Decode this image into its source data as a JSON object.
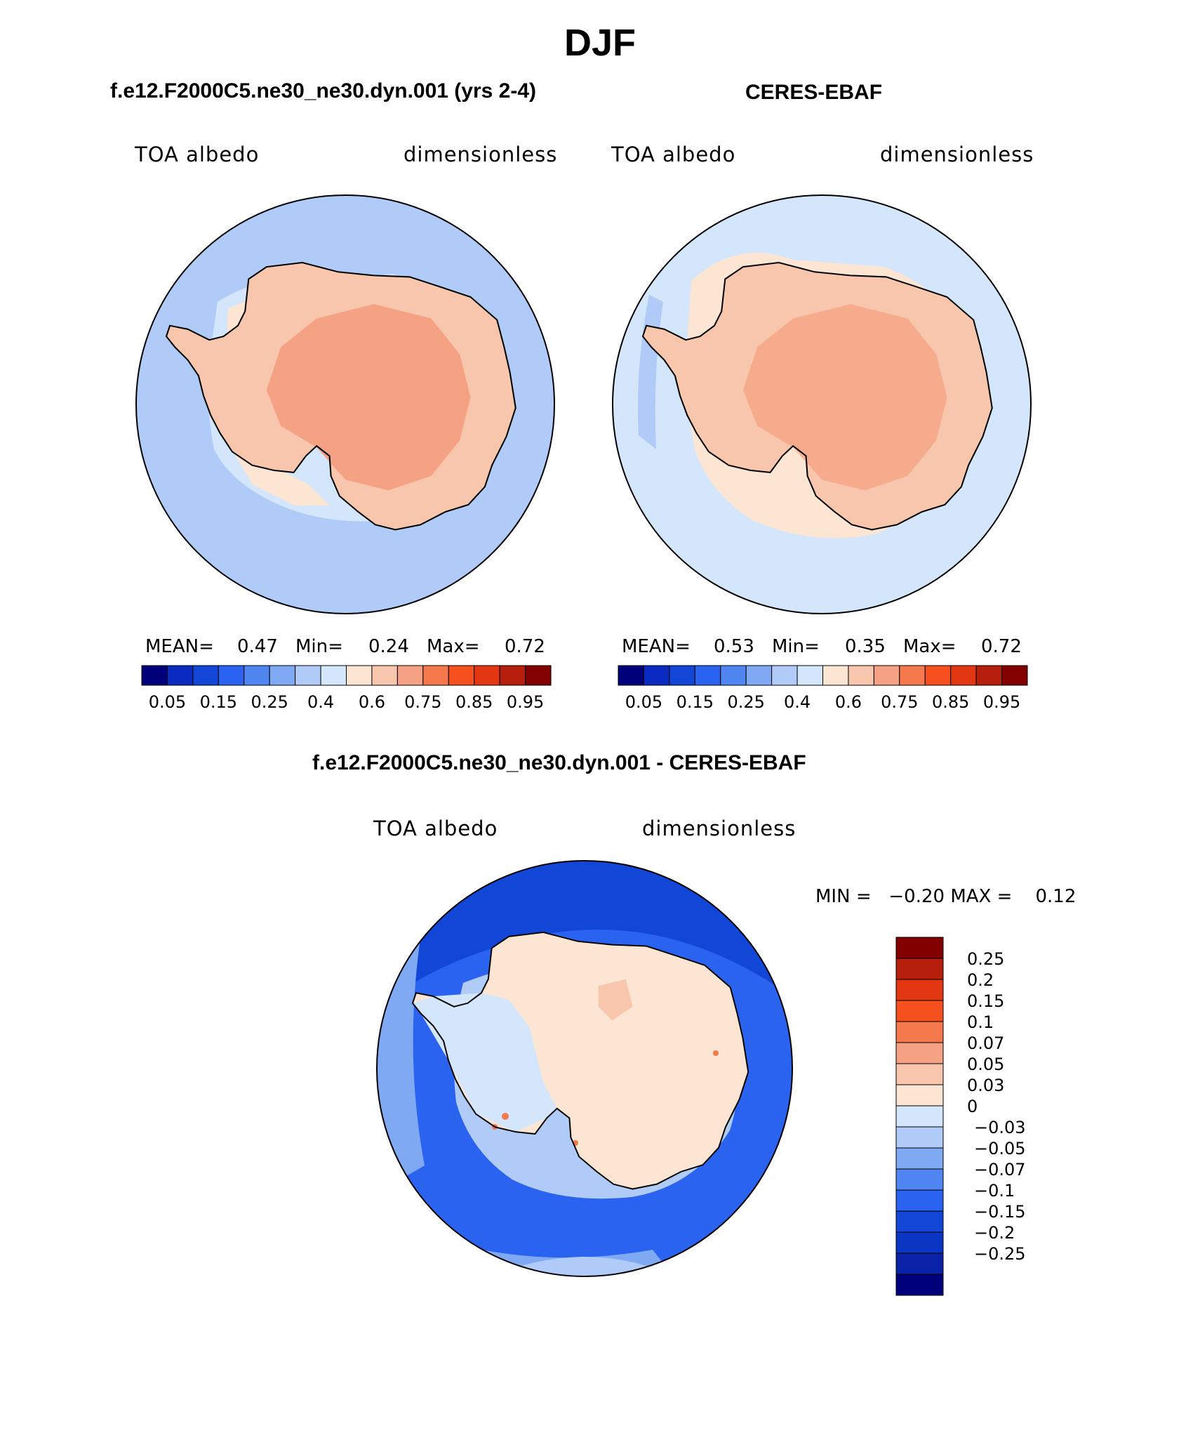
{
  "figure": {
    "season": "DJF",
    "bottom_title": "f.e12.F2000C5.ne30_ne30.dyn.001 - CERES-EBAF"
  },
  "panels": [
    {
      "title": "f.e12.F2000C5.ne30_ne30.dyn.001 (yrs 2-4)",
      "left_label": "TOA albedo",
      "right_label": "dimensionless",
      "mean_label": "MEAN=",
      "mean": "0.47",
      "min_label": "Min=",
      "min": "0.24",
      "max_label": "Max=",
      "max": "0.72"
    },
    {
      "title": "CERES-EBAF",
      "left_label": "TOA albedo",
      "right_label": "dimensionless",
      "mean_label": "MEAN=",
      "mean": "0.53",
      "min_label": "Min=",
      "min": "0.35",
      "max_label": "Max=",
      "max": "0.72"
    },
    {
      "left_label": "TOA albedo",
      "right_label": "dimensionless",
      "minmax": "MIN =   −0.20 MAX =    0.12"
    }
  ],
  "colors": {
    "seq_levels": [
      "#00007a",
      "#0a2bbf",
      "#1246d6",
      "#2a63ef",
      "#4f86f2",
      "#80a9f4",
      "#b0cbf7",
      "#d4e6fb",
      "#fde5d4",
      "#f8c6ac",
      "#f5a183",
      "#f5794c",
      "#f7501f",
      "#e23712",
      "#b51f0b",
      "#820000"
    ],
    "diff_levels": [
      "#00007a",
      "#0a22a6",
      "#0b36c4",
      "#1246d6",
      "#2a63ef",
      "#4f86f2",
      "#80a9f4",
      "#b0cbf7",
      "#d4e6fb",
      "#fde5d4",
      "#f8c6ac",
      "#f5a183",
      "#f5794c",
      "#f7501f",
      "#e23712",
      "#b51f0b",
      "#820000"
    ],
    "panel1": {
      "ocean": "#b0cbf7",
      "ring": "#d4e6fb",
      "ice": "#fde5d4",
      "land": "#f8c6ac",
      "interior": "#f5a183"
    },
    "panel2": {
      "ocean": "#d4e6fb",
      "ring": "#fde5d4",
      "land": "#f8c6ac",
      "interior": "#f5a183",
      "stripe": "#b0cbf7"
    },
    "diff": {
      "outer": "#1246d6",
      "mid": "#2a63ef",
      "edge": "#80a9f4",
      "ring": "#b0cbf7",
      "land": "#fde5d4",
      "west": "#d4e6fb",
      "hot": "#f5794c"
    }
  },
  "chart_data": [
    {
      "type": "heatmap",
      "title": "f.e12.F2000C5.ne30_ne30.dyn.001 (yrs 2-4)",
      "variable": "TOA albedo",
      "units": "dimensionless",
      "projection": "south polar stereographic",
      "levels": [
        0.05,
        0.1,
        0.15,
        0.2,
        0.25,
        0.3,
        0.4,
        0.5,
        0.6,
        0.7,
        0.75,
        0.8,
        0.85,
        0.9,
        0.95
      ],
      "colorbar_tick_labels": [
        "0.05",
        "0.15",
        "0.25",
        "0.4",
        "0.6",
        "0.75",
        "0.85",
        "0.95"
      ],
      "mean": 0.47,
      "min": 0.24,
      "max": 0.72
    },
    {
      "type": "heatmap",
      "title": "CERES-EBAF",
      "variable": "TOA albedo",
      "units": "dimensionless",
      "projection": "south polar stereographic",
      "levels": [
        0.05,
        0.1,
        0.15,
        0.2,
        0.25,
        0.3,
        0.4,
        0.5,
        0.6,
        0.7,
        0.75,
        0.8,
        0.85,
        0.9,
        0.95
      ],
      "colorbar_tick_labels": [
        "0.05",
        "0.15",
        "0.25",
        "0.4",
        "0.6",
        "0.75",
        "0.85",
        "0.95"
      ],
      "mean": 0.53,
      "min": 0.35,
      "max": 0.72
    },
    {
      "type": "heatmap",
      "title": "f.e12.F2000C5.ne30_ne30.dyn.001 - CERES-EBAF",
      "variable": "TOA albedo",
      "units": "dimensionless",
      "projection": "south polar stereographic",
      "levels": [
        -0.25,
        -0.2,
        -0.15,
        -0.1,
        -0.07,
        -0.05,
        -0.03,
        0,
        0.03,
        0.05,
        0.07,
        0.1,
        0.15,
        0.2,
        0.25
      ],
      "colorbar_tick_labels": [
        "0.25",
        "0.2",
        "0.15",
        "0.1",
        "0.07",
        "0.05",
        "0.03",
        "0",
        "−0.03",
        "−0.05",
        "−0.07",
        "−0.1",
        "−0.15",
        "−0.2",
        "−0.25"
      ],
      "min": -0.2,
      "max": 0.12
    }
  ]
}
